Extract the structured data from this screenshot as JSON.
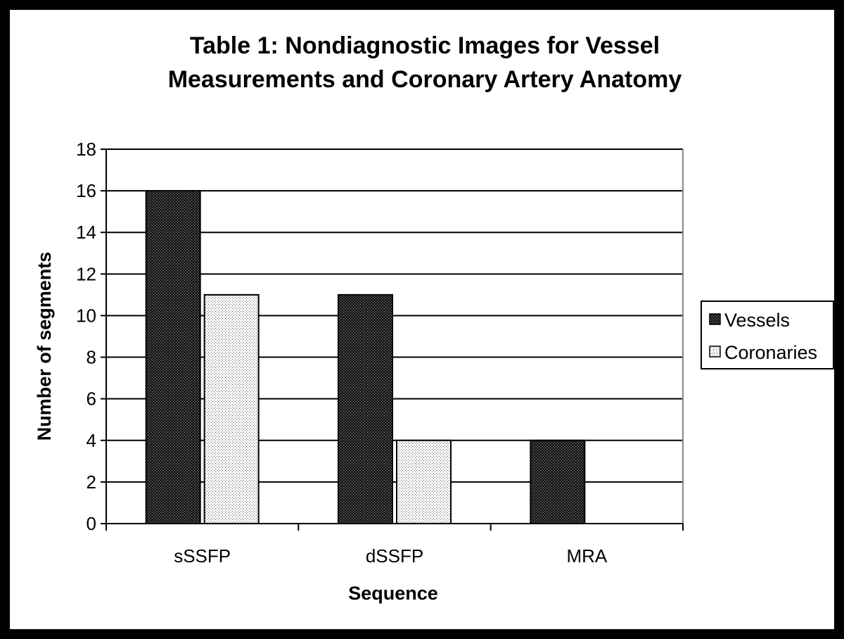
{
  "chart_data": {
    "type": "bar",
    "title_lines": [
      "Table 1: Nondiagnostic Images for Vessel",
      "Measurements and Coronary Artery Anatomy"
    ],
    "xlabel": "Sequence",
    "ylabel": "Number of segments",
    "categories": [
      "sSSFP",
      "dSSFP",
      "MRA"
    ],
    "series": [
      {
        "name": "Vessels",
        "values": [
          16,
          11,
          4
        ],
        "pattern": "dark-dotted"
      },
      {
        "name": "Coronaries",
        "values": [
          11,
          4,
          0
        ],
        "pattern": "light-dotted"
      }
    ],
    "ylim": [
      0,
      18
    ],
    "yticks": [
      "0",
      "2",
      "4",
      "6",
      "8",
      "10",
      "12",
      "14",
      "16",
      "18"
    ],
    "grid": true,
    "legend_position": "right"
  }
}
